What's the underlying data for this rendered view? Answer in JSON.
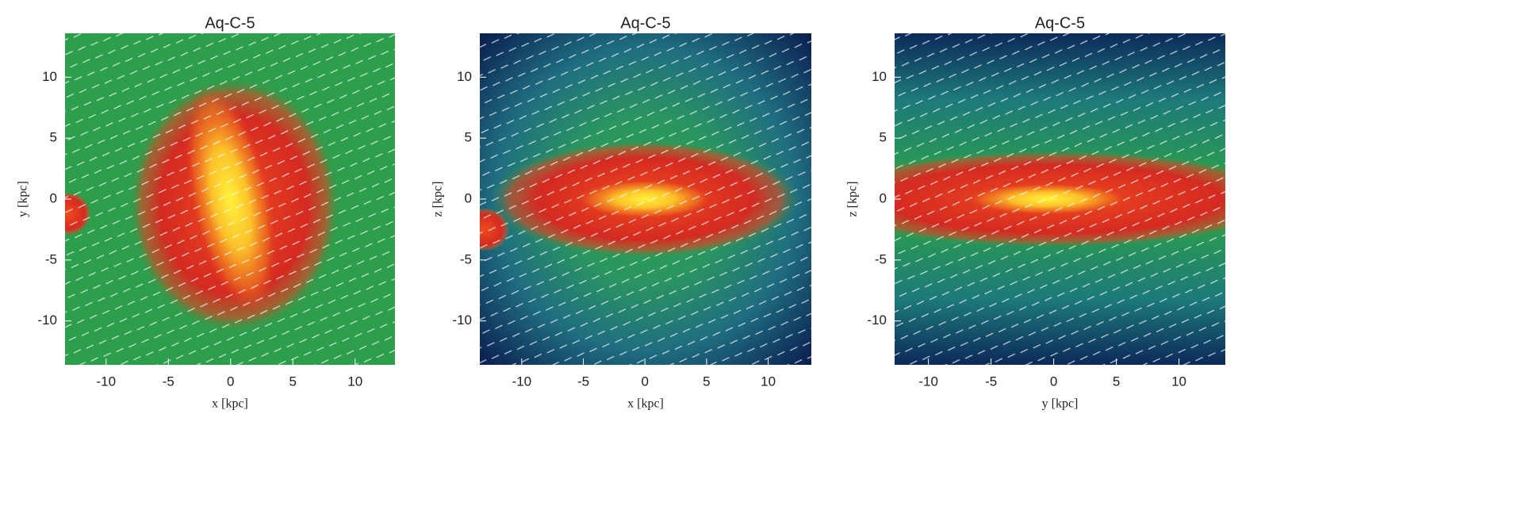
{
  "chart_data": [
    {
      "type": "heatmap",
      "title": "Aq-C-5",
      "xlabel": "x [kpc]",
      "ylabel": "y [kpc]",
      "xlim": [
        -13.3,
        13.2
      ],
      "ylim": [
        -13.6,
        13.6
      ],
      "xticks": [
        -10,
        -5,
        0,
        5,
        10
      ],
      "yticks": [
        -10,
        -5,
        0,
        5,
        10
      ]
    },
    {
      "type": "heatmap",
      "title": "Aq-C-5",
      "xlabel": "x [kpc]",
      "ylabel": "z [kpc]",
      "xlim": [
        -13.4,
        13.5
      ],
      "ylim": [
        -13.6,
        13.6
      ],
      "xticks": [
        -10,
        -5,
        0,
        5,
        10
      ],
      "yticks": [
        -10,
        -5,
        0,
        5,
        10
      ]
    },
    {
      "type": "heatmap",
      "title": "Aq-C-5",
      "xlabel": "y [kpc]",
      "ylabel": "z [kpc]",
      "xlim": [
        -12.7,
        13.7
      ],
      "ylim": [
        -13.6,
        13.6
      ],
      "xticks": [
        -10,
        -5,
        0,
        5,
        10
      ],
      "yticks": [
        -10,
        -5,
        0,
        5,
        10
      ]
    }
  ]
}
